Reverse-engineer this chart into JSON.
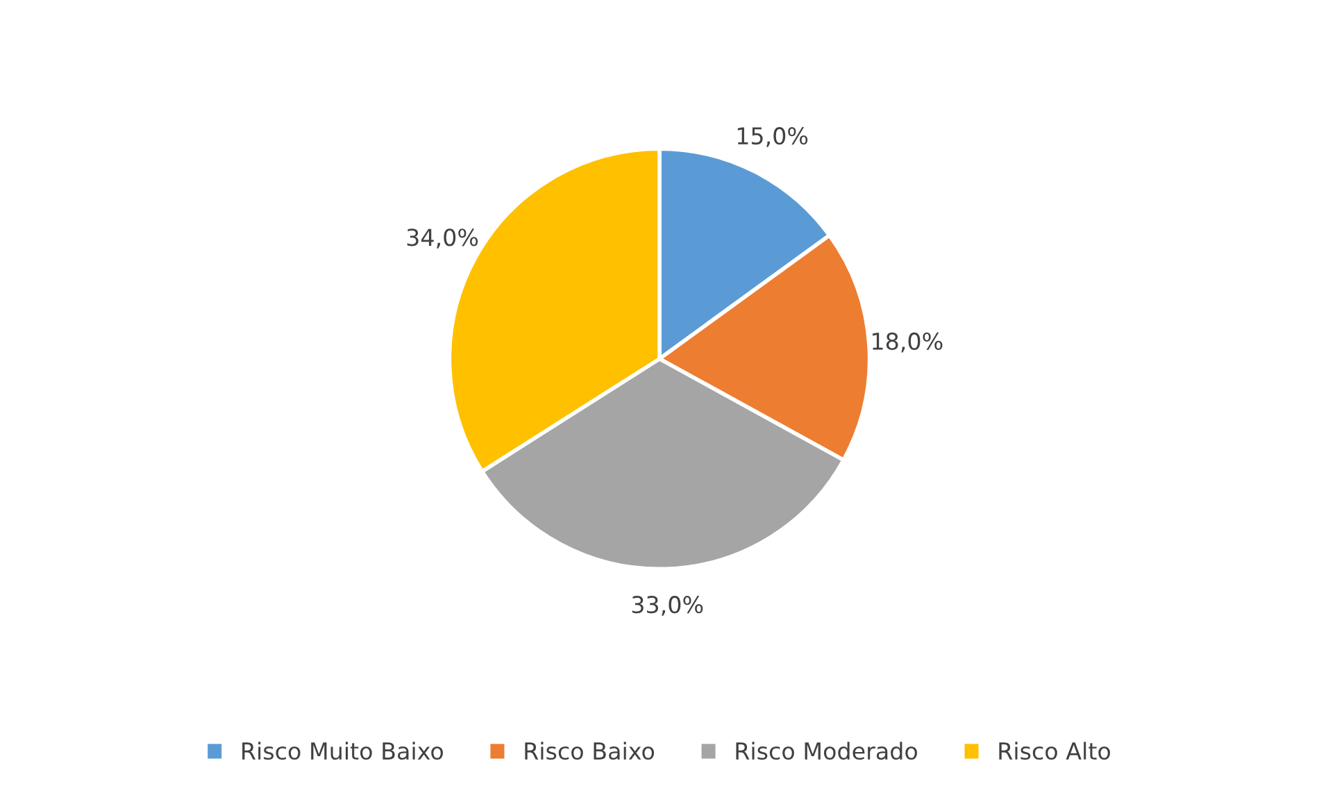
{
  "chart_data": {
    "type": "pie",
    "categories": [
      "Risco Muito Baixo",
      "Risco Baixo",
      "Risco Moderado",
      "Risco Alto"
    ],
    "values": [
      15.0,
      18.0,
      33.0,
      34.0
    ],
    "value_labels": [
      "15,0%",
      "18,0%",
      "33,0%",
      "34,0%"
    ],
    "colors": [
      "#5b9bd5",
      "#ed7d31",
      "#a5a5a5",
      "#ffc000"
    ],
    "legend": "bottom"
  }
}
